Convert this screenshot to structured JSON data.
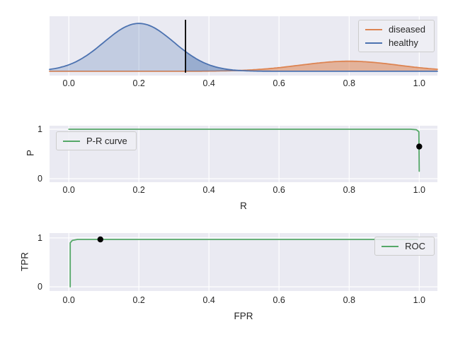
{
  "palette": {
    "figure_bg": "#ffffff",
    "axes_bg": "#eaeaf2",
    "grid": "#ffffff",
    "text": "#262626",
    "diseased": "#dd8452",
    "healthy": "#4c72b0",
    "curve_green": "#55a868",
    "marker_black": "#000000"
  },
  "chart_data": [
    {
      "id": "class-distributions",
      "type": "area",
      "x_ticks": [
        "0.0",
        "0.2",
        "0.4",
        "0.6",
        "0.8",
        "1.0"
      ],
      "x_tick_values": [
        0,
        0.2,
        0.4,
        0.6,
        0.8,
        1.0
      ],
      "xlim": [
        -0.055,
        1.052
      ],
      "ylim": [
        -0.09,
        1.15
      ],
      "grid": "vertical",
      "series": [
        {
          "name": "diseased",
          "color": "#dd8452",
          "shape": "gaussian",
          "mean": 0.8,
          "sd": 0.14,
          "peak": 0.21,
          "fill_alpha": 0.55
        },
        {
          "name": "healthy",
          "color": "#4c72b0",
          "shape": "gaussian",
          "mean": 0.2,
          "sd": 0.1,
          "peak": 1.0,
          "fill_alpha": 0.25
        },
        {
          "name": "healthy-tail-beyond-threshold",
          "color": "#4c72b0",
          "shape": "gaussian",
          "mean": 0.2,
          "sd": 0.1,
          "peak": 1.0,
          "fill_alpha": 0.35,
          "x_from": 0.333,
          "no_stroke": true
        }
      ],
      "threshold": {
        "x": 0.333,
        "y_top": 1.076,
        "y_bottom": -0.03,
        "color": "#000000"
      },
      "legend": {
        "position": "top-right",
        "entries": [
          {
            "label": "diseased",
            "color": "#dd8452"
          },
          {
            "label": "healthy",
            "color": "#4c72b0"
          }
        ]
      }
    },
    {
      "id": "precision-recall",
      "type": "line",
      "xlabel": "R",
      "ylabel": "P",
      "x_ticks": [
        "0.0",
        "0.2",
        "0.4",
        "0.6",
        "0.8",
        "1.0"
      ],
      "x_tick_values": [
        0,
        0.2,
        0.4,
        0.6,
        0.8,
        1.0
      ],
      "y_ticks": [
        {
          "label": "1",
          "value": 1
        },
        {
          "label": "0",
          "value": 0
        }
      ],
      "xlim": [
        -0.055,
        1.052
      ],
      "ylim": [
        -0.071,
        1.071
      ],
      "grid": "both",
      "series": [
        {
          "name": "P-R curve",
          "color": "#55a868",
          "points": [
            [
              0.0,
              1.0
            ],
            [
              0.975,
              1.0
            ],
            [
              0.992,
              0.99
            ],
            [
              0.999,
              0.95
            ],
            [
              1.0,
              0.15
            ]
          ]
        }
      ],
      "marker": {
        "x": 1.0,
        "y": 0.65,
        "color": "#000000"
      },
      "legend": {
        "position": "top-left",
        "entries": [
          {
            "label": "P-R curve",
            "color": "#55a868"
          }
        ]
      }
    },
    {
      "id": "roc",
      "type": "line",
      "xlabel": "FPR",
      "ylabel": "TPR",
      "x_ticks": [
        "0.0",
        "0.2",
        "0.4",
        "0.6",
        "0.8",
        "1.0"
      ],
      "x_tick_values": [
        0,
        0.2,
        0.4,
        0.6,
        0.8,
        1.0
      ],
      "y_ticks": [
        {
          "label": "1",
          "value": 1
        },
        {
          "label": "0",
          "value": 0
        }
      ],
      "xlim": [
        -0.055,
        1.052
      ],
      "ylim": [
        -0.086,
        1.1
      ],
      "grid": "both",
      "series": [
        {
          "name": "ROC",
          "color": "#55a868",
          "points": [
            [
              0.004,
              0.0
            ],
            [
              0.004,
              0.9
            ],
            [
              0.01,
              0.95
            ],
            [
              0.025,
              0.97
            ],
            [
              0.995,
              0.97
            ]
          ]
        }
      ],
      "marker": {
        "x": 0.09,
        "y": 0.97,
        "color": "#000000"
      },
      "legend": {
        "position": "top-right",
        "entries": [
          {
            "label": "ROC",
            "color": "#55a868"
          }
        ]
      }
    }
  ]
}
